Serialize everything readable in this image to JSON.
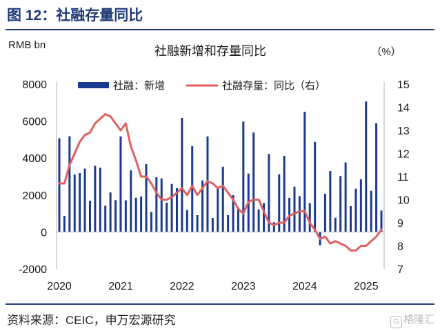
{
  "figure_title": "图 12：社融存量同比",
  "source": "资料来源：CEIC，申万宏源研究",
  "watermark": "格隆汇",
  "colors": {
    "bars": "#1a3a8f",
    "line": "#e0605f",
    "title": "#1f3a78"
  },
  "chart_data": {
    "type": "bar",
    "title": "社融新增和存量同比",
    "ylabel": "RMB bn",
    "y2label": "（%）",
    "legend": [
      "社融：新增",
      "社融存量：同比（右）"
    ],
    "legend_position": "top",
    "x_ticks": [
      "2020",
      "2021",
      "2022",
      "2023",
      "2024",
      "2025"
    ],
    "ylim": [
      -2000,
      8000
    ],
    "y_ticks": [
      "-2000",
      "0",
      "2000",
      "4000",
      "6000",
      "8000"
    ],
    "y2lim": [
      7,
      15
    ],
    "y2_ticks": [
      "7",
      "8",
      "9",
      "10",
      "11",
      "12",
      "13",
      "14",
      "15"
    ],
    "grid": false,
    "categories": [
      "2020-01",
      "2020-02",
      "2020-03",
      "2020-04",
      "2020-05",
      "2020-06",
      "2020-07",
      "2020-08",
      "2020-09",
      "2020-10",
      "2020-11",
      "2020-12",
      "2021-01",
      "2021-02",
      "2021-03",
      "2021-04",
      "2021-05",
      "2021-06",
      "2021-07",
      "2021-08",
      "2021-09",
      "2021-10",
      "2021-11",
      "2021-12",
      "2022-01",
      "2022-02",
      "2022-03",
      "2022-04",
      "2022-05",
      "2022-06",
      "2022-07",
      "2022-08",
      "2022-09",
      "2022-10",
      "2022-11",
      "2022-12",
      "2023-01",
      "2023-02",
      "2023-03",
      "2023-04",
      "2023-05",
      "2023-06",
      "2023-07",
      "2023-08",
      "2023-09",
      "2023-10",
      "2023-11",
      "2023-12",
      "2024-01",
      "2024-02",
      "2024-03",
      "2024-04",
      "2024-05",
      "2024-06",
      "2024-07",
      "2024-08",
      "2024-09",
      "2024-10",
      "2024-11",
      "2024-12",
      "2025-01",
      "2025-02",
      "2025-03",
      "2025-04"
    ],
    "series": [
      {
        "name": "社融：新增",
        "type": "bar",
        "axis": "left",
        "values": [
          5070,
          870,
          5180,
          3100,
          3190,
          3430,
          1690,
          3580,
          3480,
          1420,
          2140,
          1720,
          5170,
          1710,
          3340,
          1850,
          1920,
          3670,
          1080,
          2960,
          2900,
          1590,
          2600,
          2370,
          6170,
          1190,
          4650,
          910,
          2790,
          5170,
          760,
          2430,
          3530,
          910,
          1990,
          1310,
          5980,
          3160,
          5380,
          1220,
          1560,
          4220,
          530,
          3120,
          4120,
          1850,
          2450,
          1940,
          6500,
          1560,
          4870,
          -720,
          2070,
          3300,
          770,
          3030,
          3760,
          1400,
          2340,
          2850,
          7060,
          2230,
          5890,
          1160
        ]
      },
      {
        "name": "社融存量：同比（右）",
        "type": "line",
        "axis": "right",
        "values": [
          10.7,
          10.7,
          11.5,
          12.0,
          12.5,
          12.8,
          12.9,
          13.3,
          13.5,
          13.7,
          13.6,
          13.3,
          13.0,
          13.3,
          12.3,
          11.7,
          11.0,
          11.0,
          10.7,
          10.3,
          10.0,
          10.0,
          10.1,
          10.3,
          10.5,
          10.2,
          10.6,
          10.2,
          10.5,
          10.8,
          10.7,
          10.5,
          10.6,
          10.3,
          10.0,
          9.6,
          9.4,
          9.9,
          10.0,
          10.0,
          9.5,
          9.0,
          8.9,
          9.0,
          9.0,
          9.3,
          9.4,
          9.5,
          9.5,
          9.0,
          8.7,
          8.3,
          8.4,
          8.1,
          8.2,
          8.1,
          8.0,
          7.8,
          7.8,
          8.0,
          8.0,
          8.2,
          8.4,
          8.7
        ]
      }
    ]
  }
}
